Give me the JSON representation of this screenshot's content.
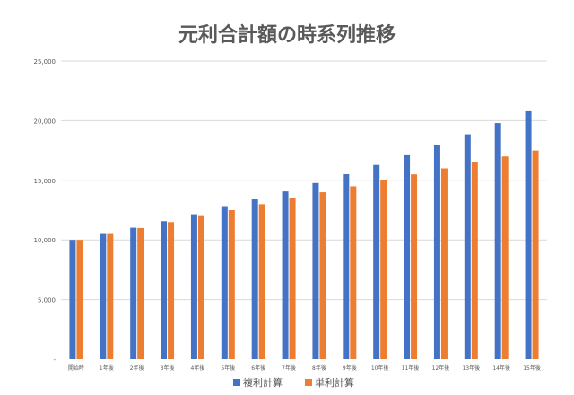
{
  "chart_data": {
    "type": "bar",
    "title": "元利合計額の時系列推移",
    "categories": [
      "開始時",
      "1年後",
      "2年後",
      "3年後",
      "4年後",
      "5年後",
      "6年後",
      "7年後",
      "8年後",
      "9年後",
      "10年後",
      "11年後",
      "12年後",
      "13年後",
      "14年後",
      "15年後"
    ],
    "series": [
      {
        "name": "複利計算",
        "color": "#4472C4",
        "values": [
          10000,
          10500,
          11025,
          11576,
          12155,
          12763,
          13401,
          14071,
          14775,
          15513,
          16289,
          17103,
          17959,
          18856,
          19799,
          20789
        ]
      },
      {
        "name": "単利計算",
        "color": "#ED7D31",
        "values": [
          10000,
          10500,
          11000,
          11500,
          12000,
          12500,
          13000,
          13500,
          14000,
          14500,
          15000,
          15500,
          16000,
          16500,
          17000,
          17500
        ]
      }
    ],
    "ylim": [
      0,
      25000
    ],
    "yticks": [
      0,
      5000,
      10000,
      15000,
      20000,
      25000
    ],
    "ytick_labels": [
      "-",
      "5,000",
      "10,000",
      "15,000",
      "20,000",
      "25,000"
    ],
    "grid": true,
    "legend_position": "bottom-center",
    "xlabel": "",
    "ylabel": ""
  }
}
